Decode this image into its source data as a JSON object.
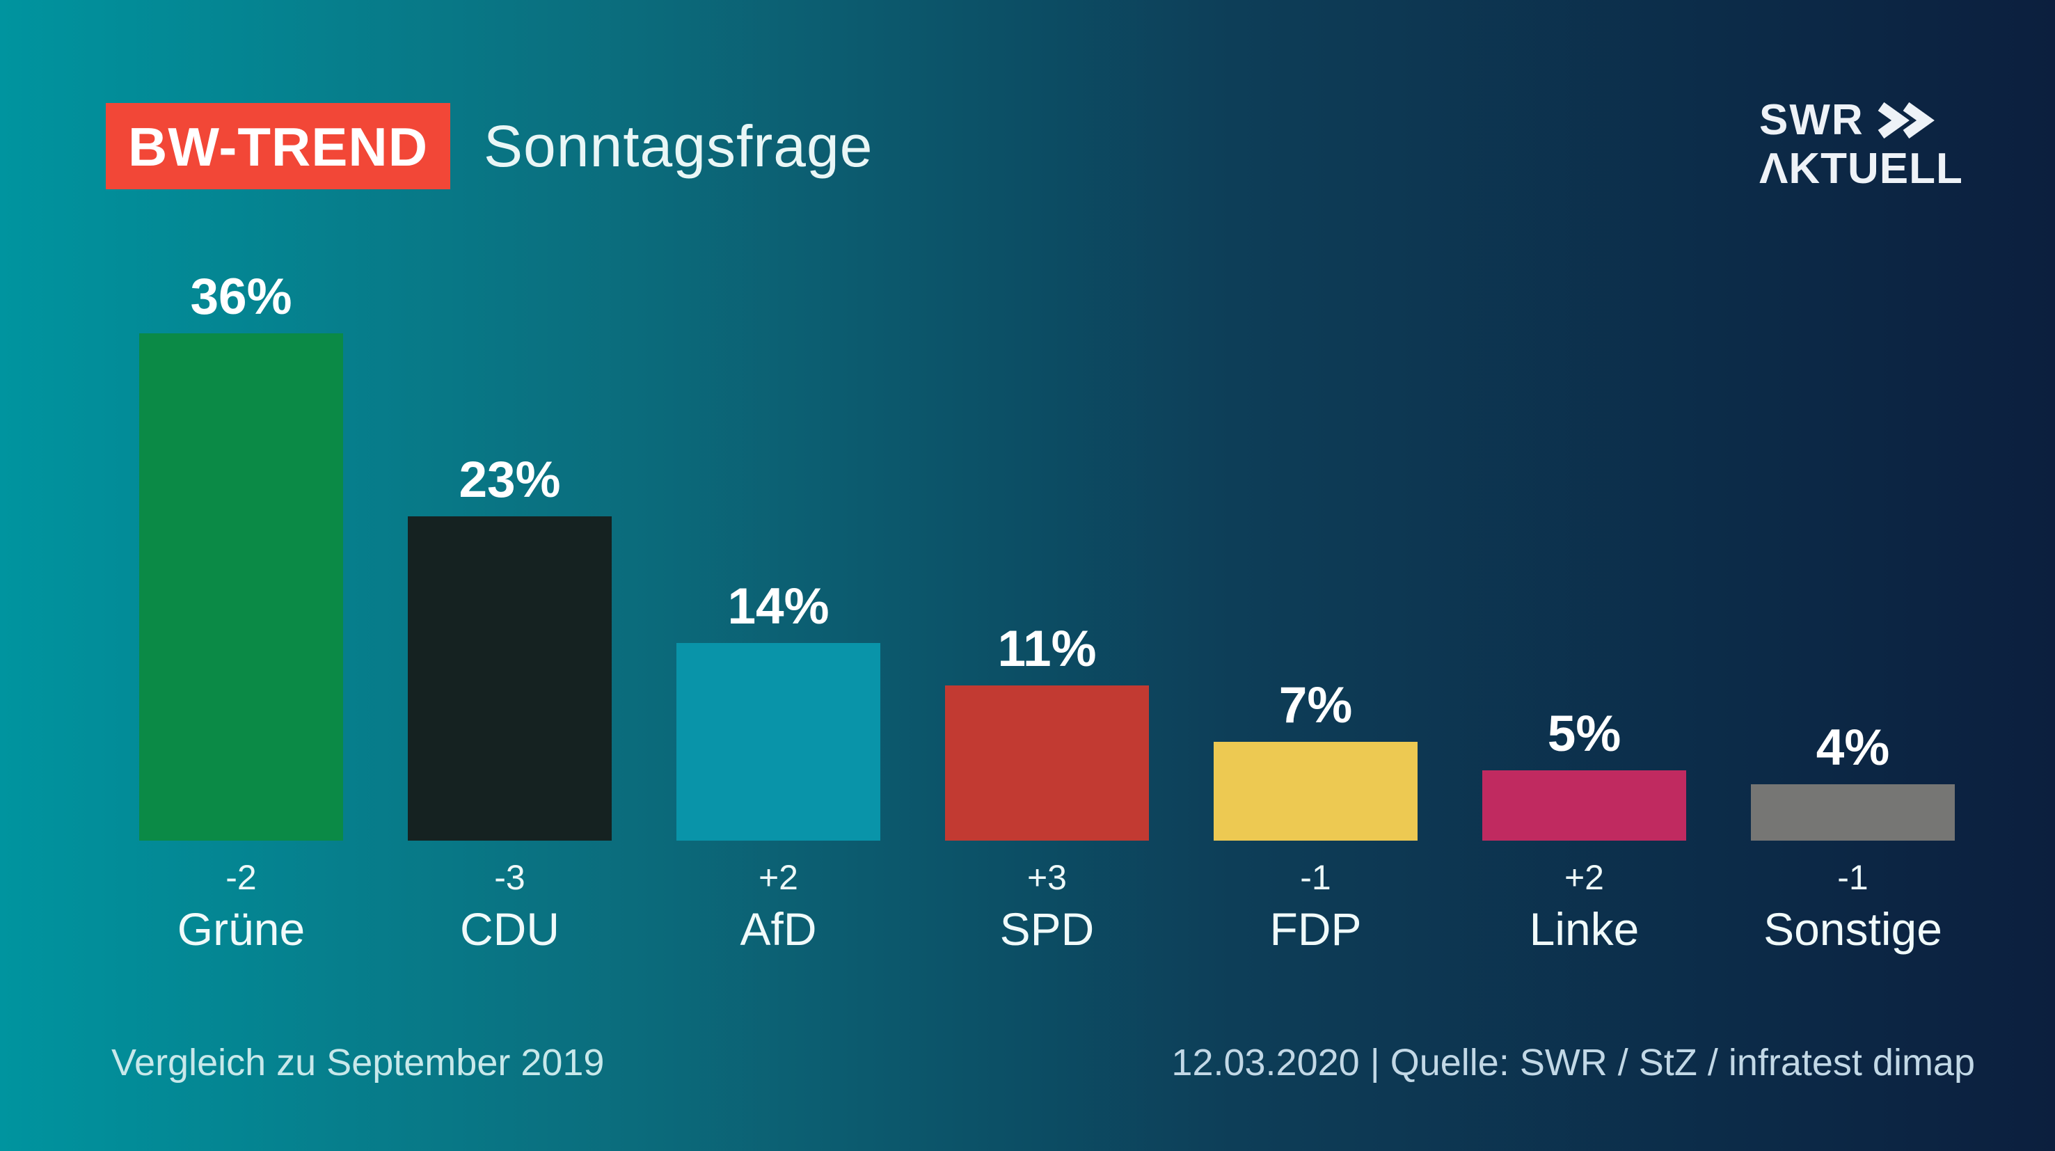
{
  "header": {
    "badge": "BW-TREND",
    "title": "Sonntagsfrage"
  },
  "logo": {
    "line1": "SWR",
    "line2": "AKTUELL",
    "chevron_icon": "double-chevron-right"
  },
  "footer": {
    "left": "Vergleich zu September 2019",
    "right": "12.03.2020 | Quelle: SWR / StZ / infratest dimap"
  },
  "colors": {
    "background_left": "#00949f",
    "background_mid1": "#0b6d7d",
    "background_mid2": "#0d3e58",
    "background_right": "#0c1f3e",
    "badge_red": "#f24737",
    "value_text": "#ffffff",
    "footer_text": "#c8e8ea"
  },
  "chart_data": {
    "type": "bar",
    "title": "BW-TREND Sonntagsfrage",
    "categories": [
      "Grüne",
      "CDU",
      "AfD",
      "SPD",
      "FDP",
      "Linke",
      "Sonstige"
    ],
    "values": [
      36,
      23,
      14,
      11,
      7,
      5,
      4
    ],
    "value_labels": [
      "36%",
      "23%",
      "14%",
      "11%",
      "7%",
      "5%",
      "4%"
    ],
    "deltas": [
      "-2",
      "-3",
      "+2",
      "+3",
      "-1",
      "+2",
      "-1"
    ],
    "bar_colors": [
      "#0b8a46",
      "#152221",
      "#0994a9",
      "#c23a32",
      "#edc952",
      "#c02a60",
      "#767674"
    ],
    "unit": "%",
    "ylim": [
      0,
      40
    ],
    "grid": false,
    "legend": "none",
    "comparison_note": "Vergleich zu September 2019",
    "source_note": "12.03.2020 | Quelle: SWR / StZ / infratest dimap"
  }
}
